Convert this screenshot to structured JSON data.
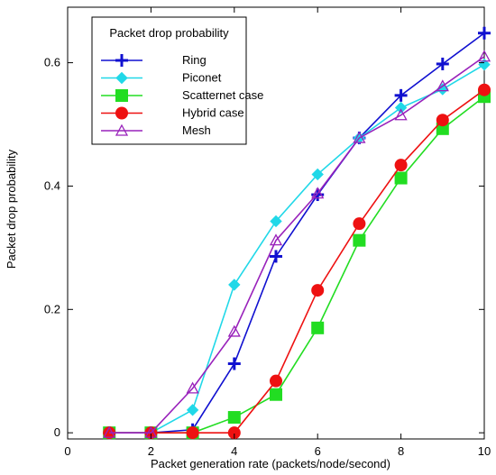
{
  "chart_data": {
    "type": "line",
    "xlabel": "Packet generation rate (packets/node/second)",
    "ylabel": "Packet drop probability",
    "xlim": [
      0,
      10
    ],
    "ylim": [
      -0.01,
      0.69
    ],
    "xticks": [
      0,
      2,
      4,
      6,
      8,
      10
    ],
    "yticks": [
      0,
      0.2,
      0.4,
      0.6
    ],
    "xtick_labels": [
      "0",
      "2",
      "4",
      "6",
      "8",
      "10"
    ],
    "ytick_labels": [
      "0",
      "0.2",
      "0.4",
      "0.6"
    ],
    "grid": false,
    "legend": {
      "title": "Packet drop probability",
      "position": "top-left"
    },
    "x": [
      1,
      2,
      3,
      4,
      5,
      6,
      7,
      8,
      9,
      10
    ],
    "series": [
      {
        "name": "Ring",
        "color": "#1010d0",
        "marker": "plus",
        "values": [
          0,
          0,
          0.005,
          0.112,
          0.286,
          0.386,
          0.478,
          0.547,
          0.598,
          0.648
        ]
      },
      {
        "name": "Piconet",
        "color": "#20d8e8",
        "marker": "diamond",
        "values": [
          0,
          0,
          0.037,
          0.24,
          0.343,
          0.419,
          0.478,
          0.527,
          0.557,
          0.597
        ]
      },
      {
        "name": "Scatternet case",
        "color": "#22dd22",
        "marker": "square",
        "values": [
          0,
          0,
          0,
          0.025,
          0.062,
          0.17,
          0.312,
          0.413,
          0.493,
          0.545
        ]
      },
      {
        "name": "Hybrid case",
        "color": "#ee1111",
        "marker": "circle",
        "values": [
          0,
          0,
          0,
          0,
          0.084,
          0.231,
          0.339,
          0.434,
          0.507,
          0.556
        ]
      },
      {
        "name": "Mesh",
        "color": "#9922bb",
        "marker": "triangle-open",
        "values": [
          0,
          0,
          0.072,
          0.164,
          0.312,
          0.388,
          0.478,
          0.515,
          0.562,
          0.61
        ]
      }
    ]
  }
}
